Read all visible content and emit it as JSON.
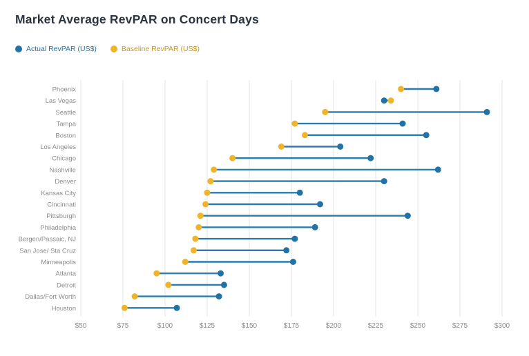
{
  "chart_data": {
    "type": "scatter",
    "variant": "dumbbell",
    "title": "Market Average RevPAR on Concert Days",
    "categories": [
      "Phoenix",
      "Las Vegas",
      "Seattle",
      "Tampa",
      "Boston",
      "Los Angeles",
      "Chicago",
      "Nashville",
      "Denver",
      "Kansas City",
      "Cincinnati",
      "Pittsburgh",
      "Philadelphia",
      "Bergen/Passaic, NJ",
      "San Jose/ Sta Cruz",
      "Minneapolis",
      "Atlanta",
      "Detroit",
      "Dallas/Fort Worth",
      "Houston"
    ],
    "series": [
      {
        "name": "Actual RevPAR (US$)",
        "color": "#2273a5",
        "values": [
          261,
          230,
          291,
          241,
          255,
          204,
          222,
          262,
          230,
          180,
          192,
          244,
          189,
          177,
          172,
          176,
          133,
          135,
          132,
          107
        ]
      },
      {
        "name": "Baseline RevPAR (US$)",
        "color": "#f0b42a",
        "values": [
          240,
          234,
          195,
          177,
          183,
          169,
          140,
          129,
          127,
          125,
          124,
          121,
          120,
          118,
          117,
          112,
          95,
          102,
          82,
          76
        ]
      }
    ],
    "x_ticks": [
      50,
      75,
      100,
      125,
      150,
      175,
      200,
      225,
      250,
      275,
      300
    ],
    "x_tick_prefix": "$",
    "xlim": [
      50,
      300
    ],
    "grid": "vertical",
    "legend_position": "top-left",
    "connector_color": "#2a7cad",
    "background": "#ffffff",
    "axis_text_color": "#8b8b8b",
    "gridline_color": "#e3e3e3",
    "title_color": "#2b3340"
  }
}
